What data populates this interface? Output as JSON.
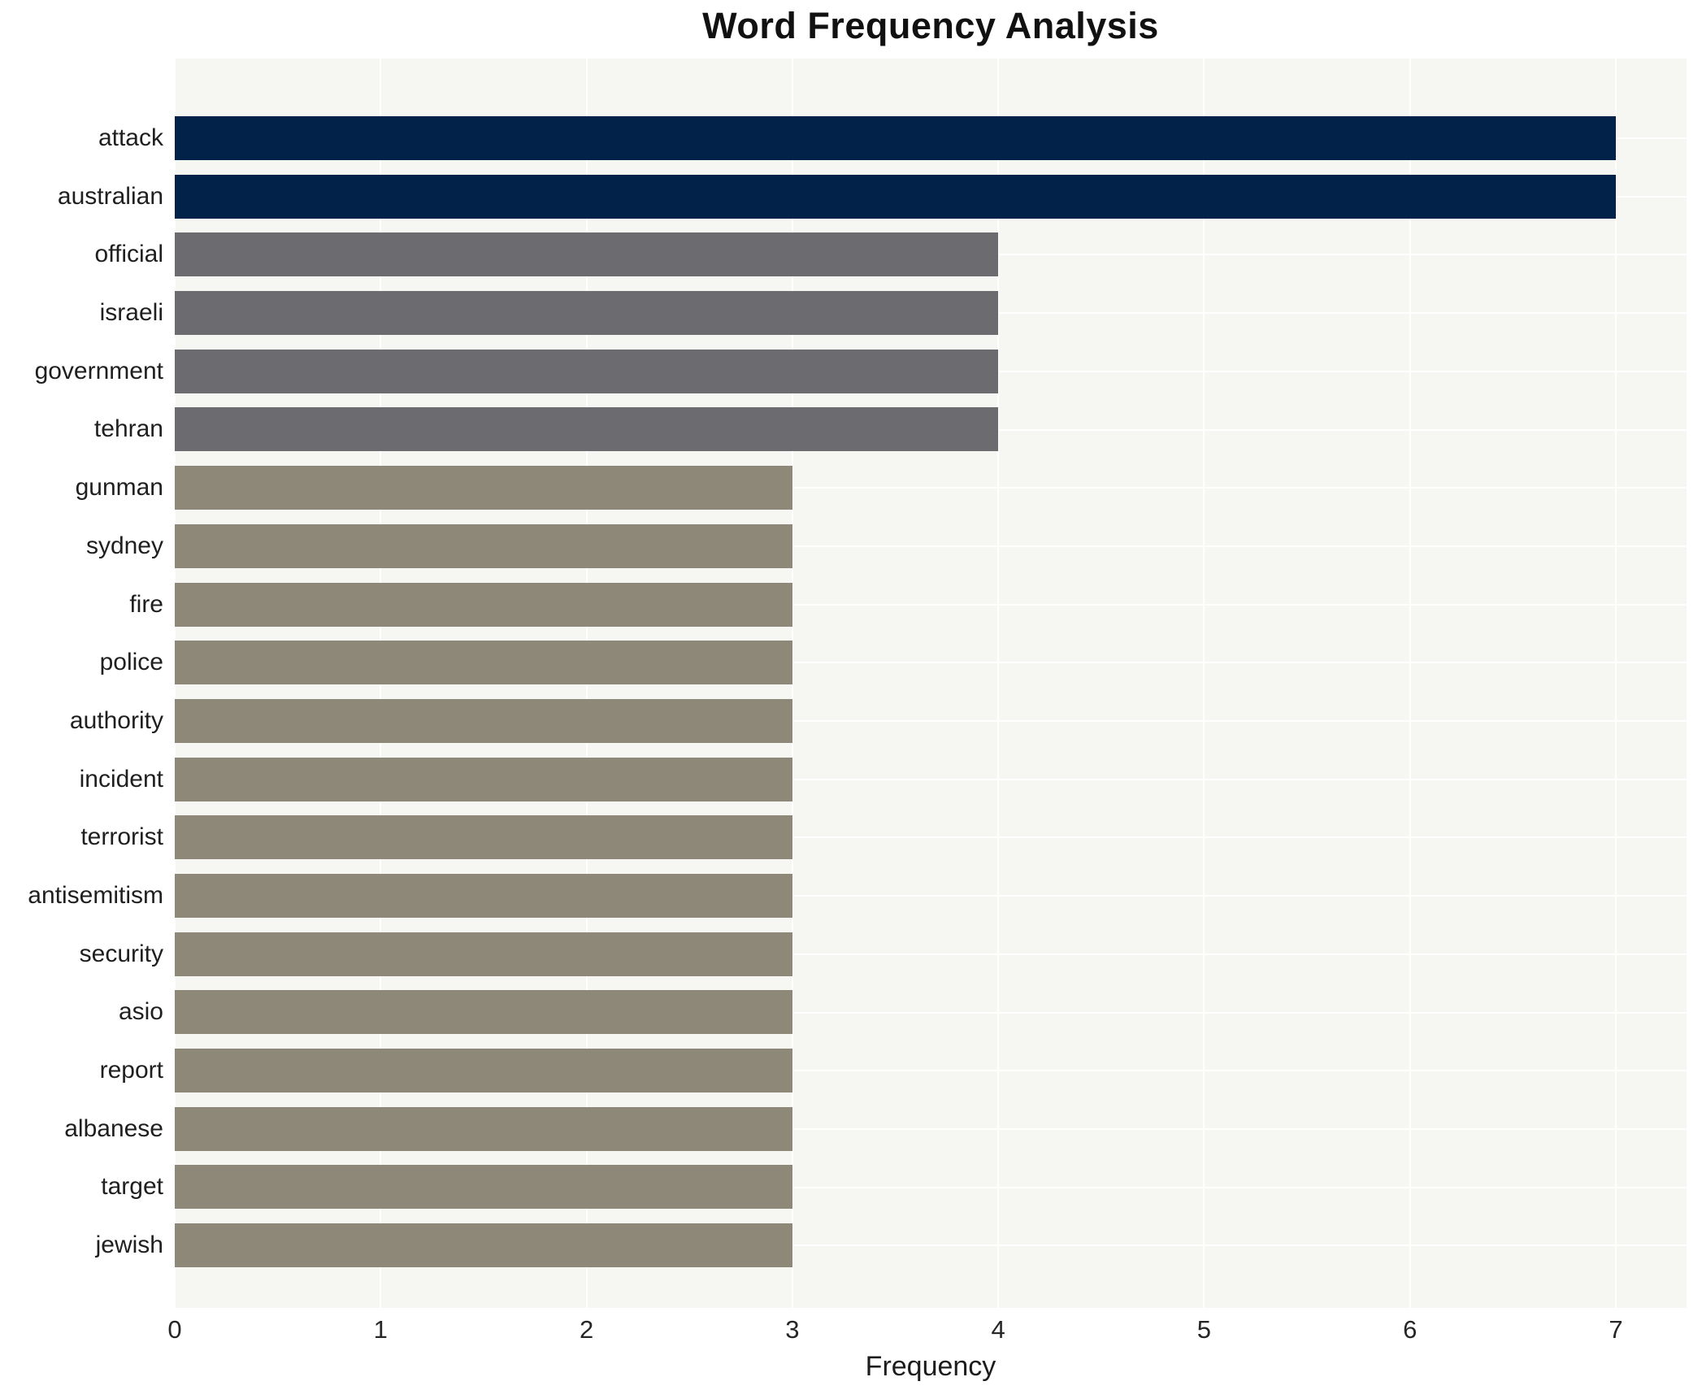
{
  "chart_data": {
    "type": "bar",
    "orientation": "horizontal",
    "title": "Word Frequency Analysis",
    "xlabel": "Frequency",
    "ylabel": "",
    "categories": [
      "attack",
      "australian",
      "official",
      "israeli",
      "government",
      "tehran",
      "gunman",
      "sydney",
      "fire",
      "police",
      "authority",
      "incident",
      "terrorist",
      "antisemitism",
      "security",
      "asio",
      "report",
      "albanese",
      "target",
      "jewish"
    ],
    "values": [
      7,
      7,
      4,
      4,
      4,
      4,
      3,
      3,
      3,
      3,
      3,
      3,
      3,
      3,
      3,
      3,
      3,
      3,
      3,
      3
    ],
    "bar_colors": [
      "#03224a",
      "#03224a",
      "#6c6c70",
      "#6c6c70",
      "#6c6c70",
      "#6c6c70",
      "#8e8878",
      "#8e8878",
      "#8e8878",
      "#8e8878",
      "#8e8878",
      "#8e8878",
      "#8e8878",
      "#8e8878",
      "#8e8878",
      "#8e8878",
      "#8e8878",
      "#8e8878",
      "#8e8878",
      "#8e8878"
    ],
    "color_legend": {
      "frequency_7": "#03224a",
      "frequency_4": "#6c6c70",
      "frequency_3": "#8e8878"
    },
    "xlim": [
      0,
      7
    ],
    "xticks": [
      0,
      1,
      2,
      3,
      4,
      5,
      6,
      7
    ],
    "grid": true,
    "gridline_color": "#ffffff",
    "plot_background": "#f6f6f3",
    "figure_background": "#ffffff",
    "legend_position": "none"
  }
}
